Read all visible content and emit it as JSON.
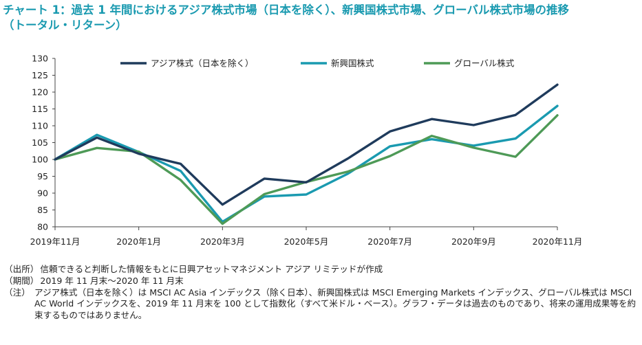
{
  "title": {
    "line1": "チャート 1：過去 1 年間におけるアジア株式市場（日本を除く）、新興国株式市場、グローバル株式市場の推移",
    "line2": "（トータル・リターン）"
  },
  "colors": {
    "asia": "#1f3b5c",
    "emerging": "#1a9ab0",
    "global": "#4e9a57",
    "title": "#1a9ab0"
  },
  "chart_data": {
    "type": "line",
    "x": [
      "2019年11月",
      "2019年12月",
      "2020年1月",
      "2020年2月",
      "2020年3月",
      "2020年4月",
      "2020年5月",
      "2020年6月",
      "2020年7月",
      "2020年8月",
      "2020年9月",
      "2020年10月",
      "2020年11月"
    ],
    "x_tick_labels": [
      "2019年11月",
      "",
      "2020年1月",
      "",
      "2020年3月",
      "",
      "2020年5月",
      "",
      "2020年7月",
      "",
      "2020年9月",
      "",
      "2020年11月"
    ],
    "ylim": [
      80,
      130
    ],
    "yticks": [
      80,
      85,
      90,
      95,
      100,
      105,
      110,
      115,
      120,
      125,
      130
    ],
    "grid": false,
    "legend_position": "top",
    "title": "",
    "xlabel": "",
    "ylabel": "",
    "series": [
      {
        "name": "アジア株式（日本を除く）",
        "color": "#1f3b5c",
        "values": [
          100,
          106.5,
          101.7,
          98.7,
          86.6,
          94.3,
          93.2,
          100.3,
          108.3,
          112.0,
          110.2,
          113.2,
          122.2
        ]
      },
      {
        "name": "新興国株式",
        "color": "#1a9ab0",
        "values": [
          100,
          107.3,
          102.2,
          96.6,
          81.5,
          89.0,
          89.6,
          95.8,
          103.9,
          106.0,
          104.1,
          106.2,
          115.9
        ]
      },
      {
        "name": "グローバル株式",
        "color": "#4e9a57",
        "values": [
          100,
          103.4,
          102.3,
          93.9,
          80.9,
          89.7,
          93.3,
          96.4,
          101.0,
          107.0,
          103.5,
          100.8,
          113.1
        ]
      }
    ]
  },
  "notes": [
    {
      "label": "（出所）",
      "text": "信頼できると判断した情報をもとに日興アセットマネジメント アジア リミテッドが作成"
    },
    {
      "label": "（期間）",
      "text": "2019 年 11 月末～2020 年 11 月末"
    },
    {
      "label": "（注）",
      "text": "アジア株式（日本を除く）は MSCI AC Asia インデックス（除く日本）、新興国株式は MSCI Emerging Markets インデックス、グローバル株式は MSCI AC World インデックスを、2019 年 11 月末を 100 として指数化（すべて米ドル・ベース）。グラフ・データは過去のものであり、将来の運用成果等を約束するものではありません。"
    }
  ]
}
